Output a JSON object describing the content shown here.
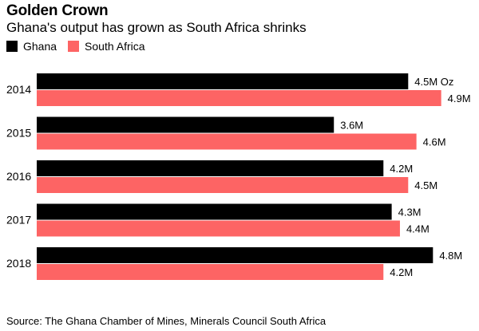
{
  "header": {
    "title": "Golden Crown",
    "subtitle": "Ghana's output has grown as South Africa shrinks"
  },
  "source": "Source: The Ghana Chamber of Mines, Minerals Council South Africa",
  "chart_data": {
    "type": "bar",
    "orientation": "horizontal",
    "categories": [
      "2014",
      "2015",
      "2016",
      "2017",
      "2018"
    ],
    "series": [
      {
        "name": "Ghana",
        "color": "#000000",
        "values": [
          4.5,
          3.6,
          4.2,
          4.3,
          4.8
        ],
        "labels": [
          "4.5M Oz",
          "3.6M",
          "4.2M",
          "4.3M",
          "4.8M"
        ]
      },
      {
        "name": "South Africa",
        "color": "#fd6464",
        "values": [
          4.9,
          4.6,
          4.5,
          4.4,
          4.2
        ],
        "labels": [
          "4.9M",
          "4.6M",
          "4.5M",
          "4.4M",
          "4.2M"
        ]
      }
    ],
    "xlim": [
      0,
      5
    ],
    "legend": "top-left",
    "grid": false
  }
}
